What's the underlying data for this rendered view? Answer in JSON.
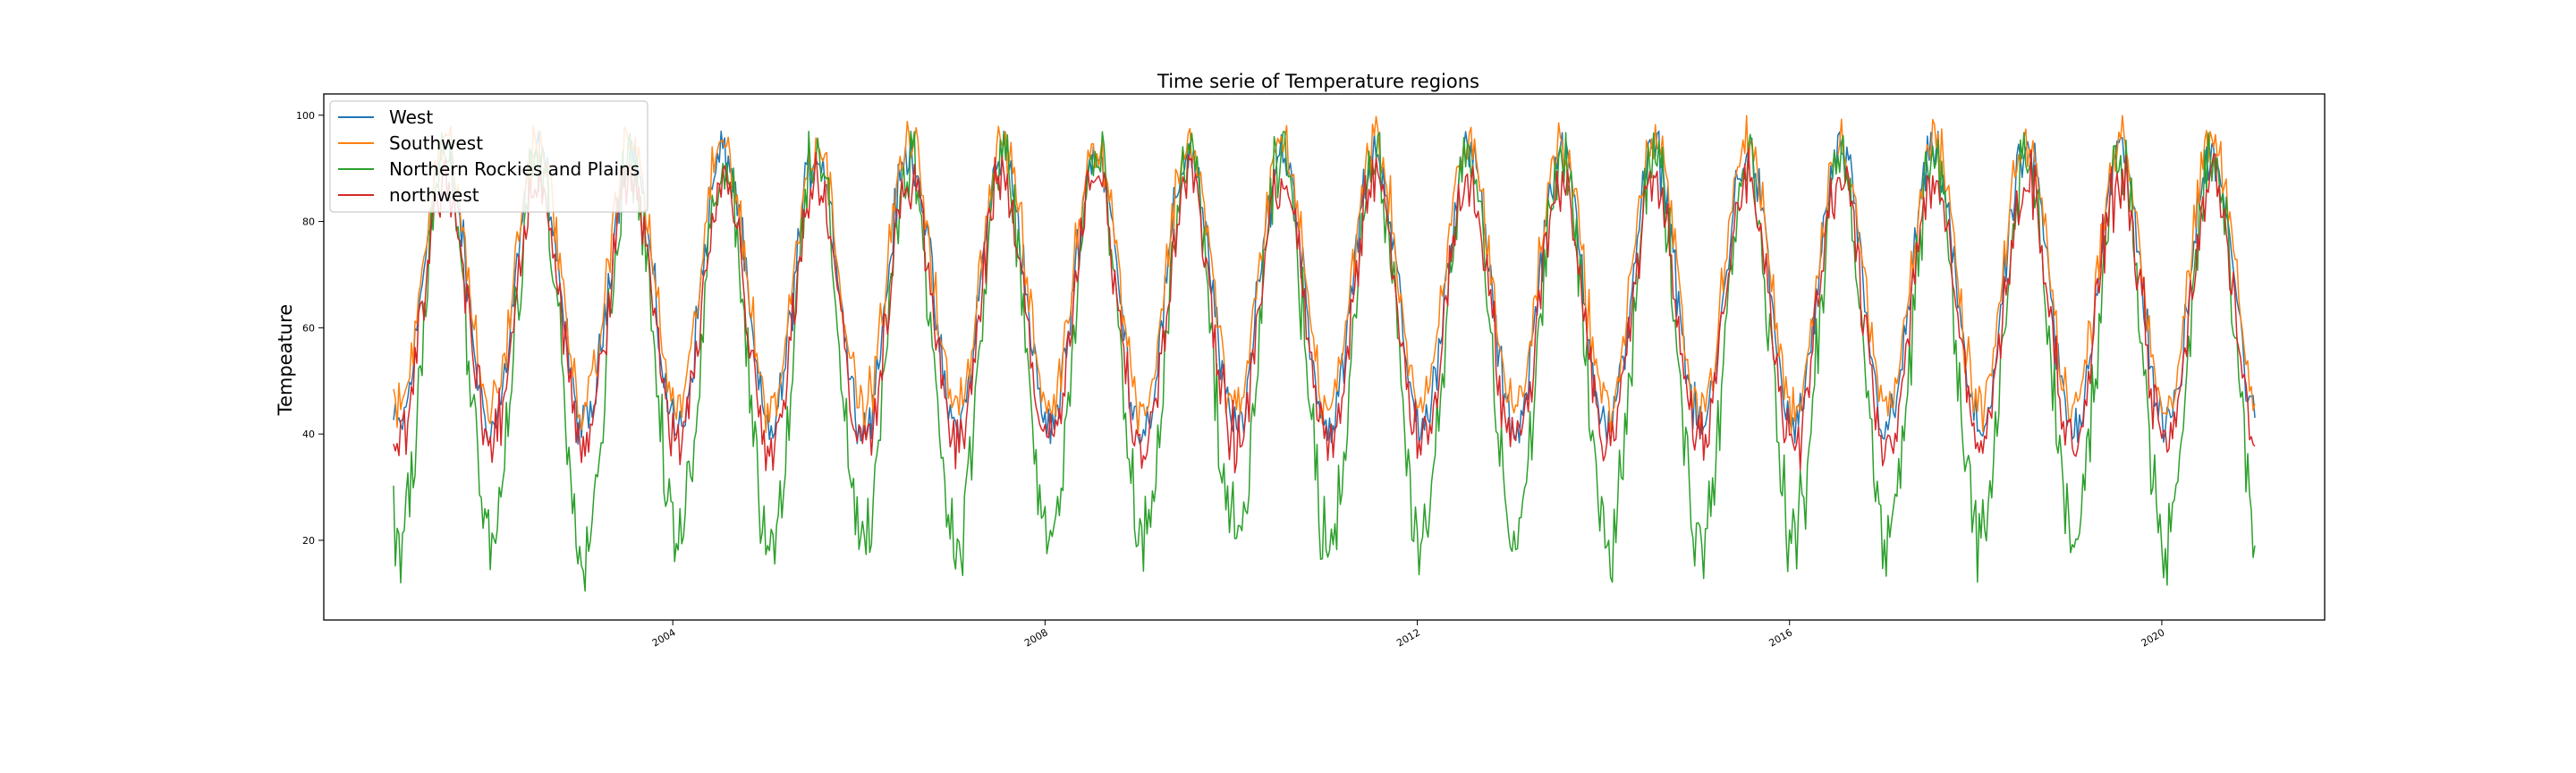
{
  "chart_data": {
    "type": "line",
    "title": "Time serie of Temperature regions",
    "xlabel": "",
    "ylabel": "Tempeature",
    "x_range": [
      2000.25,
      2021.75
    ],
    "ylim": [
      5,
      104
    ],
    "x_ticks": [
      "2004",
      "2008",
      "2012",
      "2016",
      "2020"
    ],
    "y_ticks": [
      "20",
      "40",
      "60",
      "80",
      "100"
    ],
    "grid": false,
    "legend_position": "top-left",
    "x_values_note_units": "years (decimal), weekly samples from 2001.0 to 2021.0",
    "series": [
      {
        "name": "West",
        "color": "#1f77b4",
        "min": 38,
        "max": 97
      },
      {
        "name": "Southwest",
        "color": "#ff7f0e",
        "min": 40,
        "max": 100
      },
      {
        "name": "Northern Rockies and Plains",
        "color": "#2ca02c",
        "min": 10,
        "max": 97
      },
      {
        "name": "northwest",
        "color": "#d62728",
        "min": 29,
        "max": 96
      }
    ]
  }
}
